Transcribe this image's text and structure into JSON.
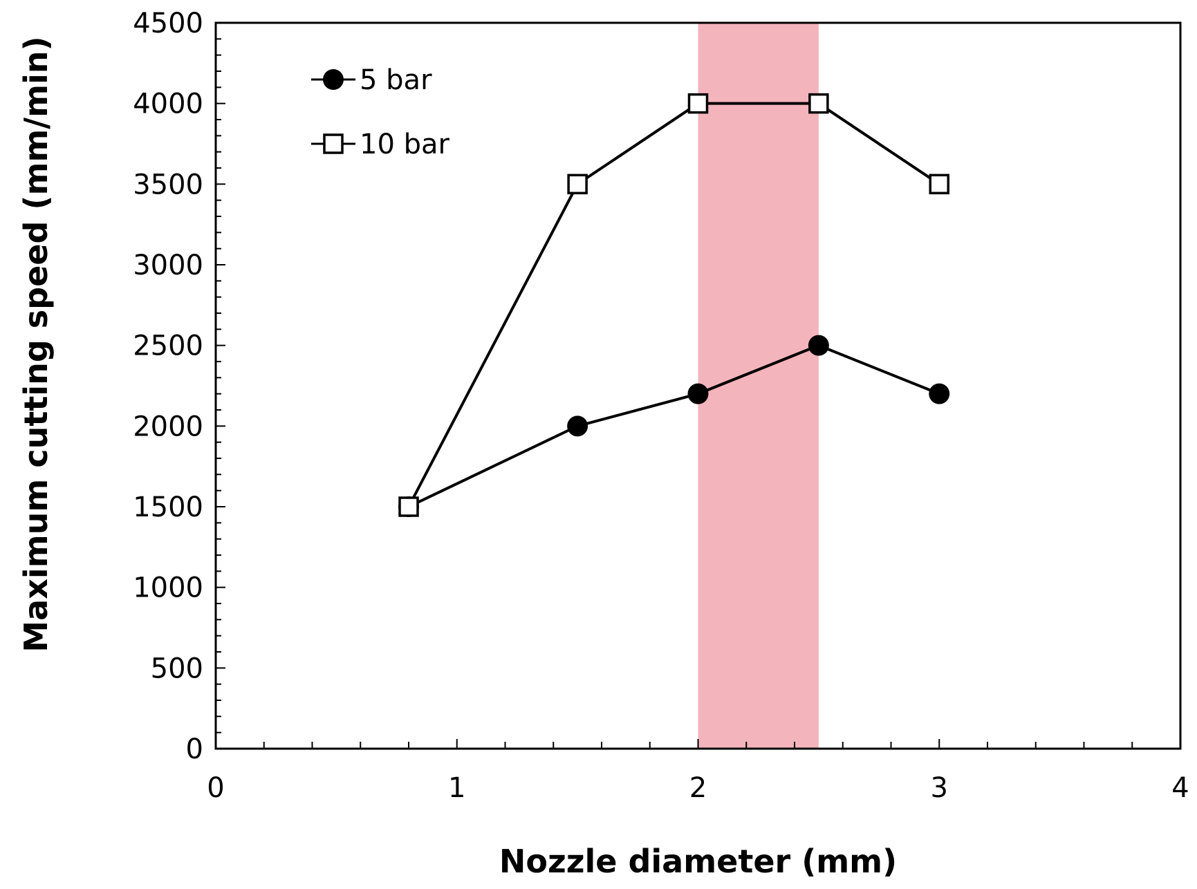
{
  "chart_data": {
    "type": "line",
    "title": "",
    "xlabel": "Nozzle diameter (mm)",
    "ylabel": "Maximum cutting speed (mm/min)",
    "xlim": [
      0,
      4
    ],
    "ylim": [
      0,
      4500
    ],
    "x_ticks": [
      "0",
      "1",
      "2",
      "3",
      "4"
    ],
    "y_ticks": [
      "0",
      "500",
      "1000",
      "1500",
      "2000",
      "2500",
      "3000",
      "3500",
      "4000",
      "4500"
    ],
    "grid": false,
    "legend_position": "top-left",
    "highlight_band": {
      "x_from": 2.0,
      "x_to": 2.5,
      "color": "#f2a7b0"
    },
    "series": [
      {
        "name": "5 bar",
        "marker": "filled-circle",
        "color": "#000000",
        "x": [
          0.8,
          1.5,
          2.0,
          2.5,
          3.0
        ],
        "y": [
          1500,
          2000,
          2200,
          2500,
          2200
        ]
      },
      {
        "name": "10 bar",
        "marker": "open-square",
        "color": "#000000",
        "x": [
          0.8,
          1.5,
          2.0,
          2.5,
          3.0
        ],
        "y": [
          1500,
          3500,
          4000,
          4000,
          3500
        ]
      }
    ]
  }
}
